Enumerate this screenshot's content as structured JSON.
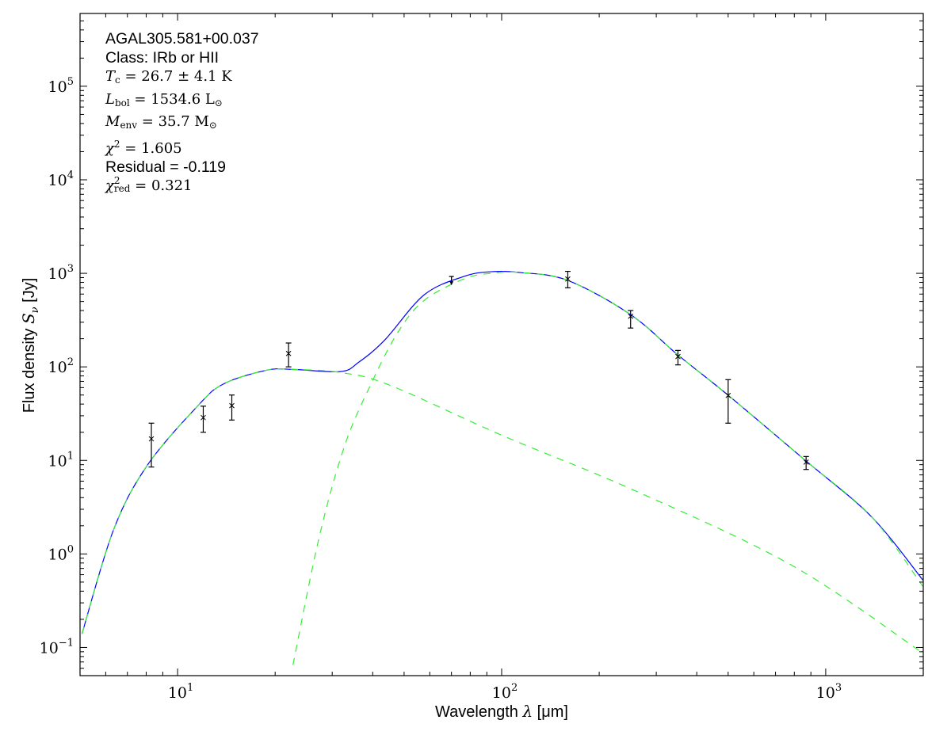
{
  "chart_data": {
    "type": "scatter",
    "xscale": "log",
    "yscale": "log",
    "xlim": [
      5,
      2000
    ],
    "ylim": [
      0.05,
      600000
    ],
    "xlabel": {
      "text": "Wavelength ",
      "math": "λ",
      "unit": " [μm]"
    },
    "ylabel": {
      "text": "Flux density ",
      "math": "S",
      "sub": "ν",
      "unit": " [Jy]"
    },
    "x_ticks": [
      {
        "base": "10",
        "exp": "1",
        "value": 10
      },
      {
        "base": "10",
        "exp": "2",
        "value": 100
      },
      {
        "base": "10",
        "exp": "3",
        "value": 1000
      }
    ],
    "y_ticks": [
      {
        "base": "10",
        "exp": "−1",
        "value": 0.1
      },
      {
        "base": "10",
        "exp": "0",
        "value": 1
      },
      {
        "base": "10",
        "exp": "1",
        "value": 10
      },
      {
        "base": "10",
        "exp": "2",
        "value": 100
      },
      {
        "base": "10",
        "exp": "3",
        "value": 1000
      },
      {
        "base": "10",
        "exp": "4",
        "value": 10000
      },
      {
        "base": "10",
        "exp": "5",
        "value": 100000
      }
    ],
    "grid": false,
    "colors": {
      "total_model": "#0000ff",
      "components": "#33ee33",
      "data": "#000000"
    },
    "data_points": [
      {
        "x": 8.3,
        "y": 17,
        "yerr_low": 8.5,
        "yerr_high": 25
      },
      {
        "x": 12,
        "y": 28.7,
        "yerr_low": 20,
        "yerr_high": 38
      },
      {
        "x": 14.7,
        "y": 38.5,
        "yerr_low": 27,
        "yerr_high": 50
      },
      {
        "x": 22,
        "y": 139,
        "yerr_low": 100,
        "yerr_high": 180
      },
      {
        "x": 70,
        "y": 925,
        "upper_limit": true
      },
      {
        "x": 160,
        "y": 870,
        "yerr_low": 700,
        "yerr_high": 1050
      },
      {
        "x": 250,
        "y": 348,
        "yerr_low": 260,
        "yerr_high": 400
      },
      {
        "x": 350,
        "y": 129,
        "yerr_low": 105,
        "yerr_high": 150
      },
      {
        "x": 500,
        "y": 49.5,
        "yerr_low": 25,
        "yerr_high": 73
      },
      {
        "x": 870,
        "y": 9.6,
        "yerr_low": 8,
        "yerr_high": 11
      }
    ],
    "curves": [
      {
        "style": "solid",
        "role": "total",
        "x": [
          5.07,
          6.34,
          8.07,
          11.6,
          13.9,
          18.8,
          22.7,
          31.8,
          36.2,
          43.6,
          57.7,
          76.4,
          92.5,
          114,
          160,
          250,
          350,
          499,
          865,
          1384,
          1995
        ],
        "y": [
          0.14,
          1.8,
          8.9,
          39,
          66,
          92,
          94,
          89,
          112,
          194,
          590,
          925,
          1040,
          1020,
          840,
          362,
          134,
          50,
          10,
          2.5,
          0.525
        ]
      },
      {
        "style": "dashed",
        "role": "warm-component",
        "x": [
          5.07,
          6.34,
          8.07,
          11.6,
          13.9,
          18.8,
          22.7,
          31.8,
          45,
          100,
          256,
          789,
          1995
        ],
        "y": [
          0.14,
          1.8,
          8.9,
          39,
          66,
          92,
          94,
          87,
          64,
          18.6,
          4.8,
          0.75,
          0.087
        ]
      },
      {
        "style": "dashed",
        "role": "cold-component",
        "x": [
          22.7,
          27.3,
          32.8,
          39.8,
          47.9,
          57.7,
          76.4,
          92.5,
          114,
          160,
          250,
          350,
          499,
          865,
          1384,
          1995
        ],
        "y": [
          0.065,
          1.47,
          14.5,
          69,
          236,
          515,
          870,
          1000,
          1020,
          840,
          362,
          134,
          50,
          10,
          2.5,
          0.45
        ]
      }
    ]
  },
  "annotation": {
    "source": "AGAL305.581+00.037",
    "class": "Class: IRb or HII",
    "tc": {
      "sym": "T",
      "sub": "c",
      "rest": " = 26.7 ± 4.1 K"
    },
    "lbol": {
      "sym": "L",
      "sub": "bol",
      "rest": " = 1534.6 L",
      "rsub": "⊙"
    },
    "menv": {
      "sym": "M",
      "sub": "env",
      "rest": " = 35.7 M",
      "rsub": "⊙"
    },
    "chi2": {
      "sym": "χ",
      "sup": "2",
      "rest": " = 1.605"
    },
    "residual": "Residual = -0.119",
    "chi2red": {
      "sym": "χ",
      "sup": "2",
      "sub": "red",
      "rest": " = 0.321"
    }
  }
}
